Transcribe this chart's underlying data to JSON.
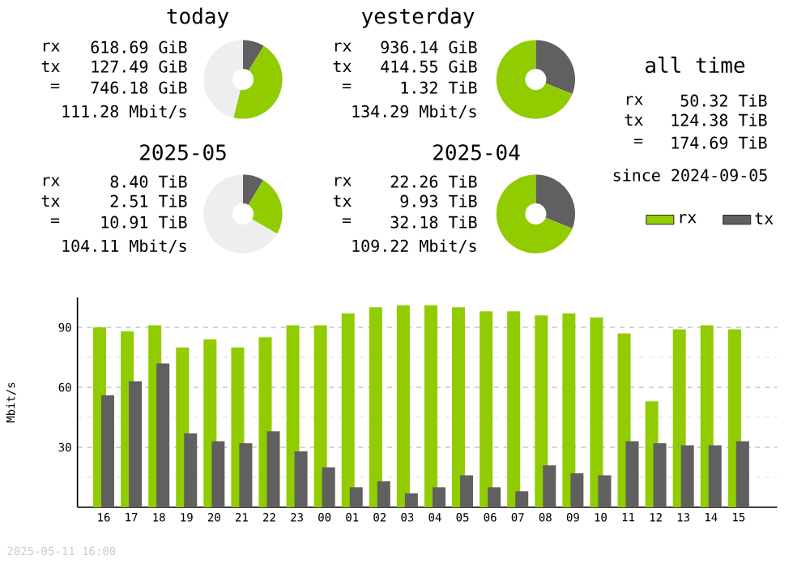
{
  "chart_data": [
    {
      "type": "donut",
      "title": "today",
      "categories": [
        null,
        null,
        null
      ],
      "values": [
        8.9,
        45,
        46.1
      ],
      "colors": [
        "#606060",
        "#90cc00",
        "#eeeeee"
      ],
      "annotations": [
        "rx",
        "618.69 GiB",
        "tx",
        "127.49 GiB",
        "=",
        "746.18 GiB",
        "111.28 Mbit/s"
      ]
    },
    {
      "type": "donut",
      "title": "yesterday",
      "categories": [
        null,
        null
      ],
      "values": [
        31,
        69
      ],
      "colors": [
        "#606060",
        "#90cc00"
      ],
      "annotations": [
        "rx",
        "936.14 GiB",
        "tx",
        "414.55 GiB",
        "=",
        "1.32 TiB",
        "134.29 Mbit/s"
      ]
    },
    {
      "type": "other",
      "title": "all time",
      "annotations": [
        "rx",
        "50.32 TiB",
        "tx",
        "124.38 TiB",
        "=",
        "174.69 TiB",
        "since 2024-09-05"
      ]
    },
    {
      "type": "donut",
      "title": "2025-05",
      "categories": [
        null,
        null,
        null
      ],
      "values": [
        8.6,
        24.8,
        66.6
      ],
      "colors": [
        "#606060",
        "#90cc00",
        "#eeeeee"
      ],
      "annotations": [
        "rx",
        "8.40 TiB",
        "tx",
        "2.51 TiB",
        "=",
        "10.91 TiB",
        "104.11 Mbit/s"
      ]
    },
    {
      "type": "donut",
      "title": "2025-04",
      "categories": [
        null,
        null
      ],
      "values": [
        31,
        69
      ],
      "colors": [
        "#606060",
        "#90cc00"
      ],
      "annotations": [
        "rx",
        "22.26 TiB",
        "tx",
        "9.93 TiB",
        "=",
        "32.18 TiB",
        "109.22 Mbit/s"
      ]
    },
    {
      "type": "bar",
      "categories": [
        "16",
        "17",
        "18",
        "19",
        "20",
        "21",
        "22",
        "23",
        "00",
        "01",
        "02",
        "03",
        "04",
        "05",
        "06",
        "07",
        "08",
        "09",
        "10",
        "11",
        "12",
        "13",
        "14",
        "15"
      ],
      "ylabel": "Mbit/s",
      "ylim": [
        0,
        105
      ],
      "yticks": [
        {
          "value": 15,
          "label": null
        },
        30,
        {
          "value": 45,
          "label": null
        },
        60,
        {
          "value": 75,
          "label": null
        },
        90
      ],
      "grid": "y",
      "legend": "top right",
      "series": [
        {
          "name": "rx",
          "color": "#90cc00",
          "values": [
            90,
            88,
            91,
            80,
            84,
            80,
            85,
            91,
            91,
            97,
            100,
            101,
            101,
            100,
            98,
            98,
            96,
            97,
            95,
            87,
            53,
            89,
            91,
            89
          ]
        },
        {
          "name": "tx",
          "color": "#606060",
          "values": [
            56,
            63,
            72,
            37,
            33,
            32,
            38,
            28,
            20,
            10,
            13,
            7,
            10,
            16,
            10,
            8,
            21,
            17,
            16,
            33,
            32,
            31,
            31,
            33
          ]
        }
      ],
      "annotations": [
        "2025-05-11 16:00"
      ]
    }
  ]
}
